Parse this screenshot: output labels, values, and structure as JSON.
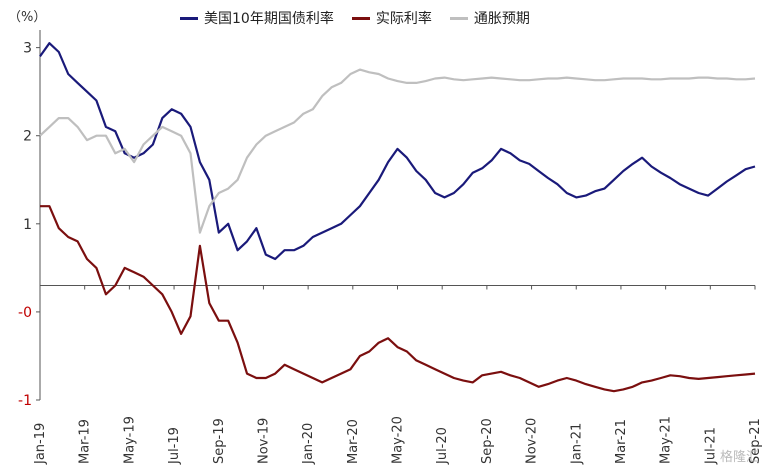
{
  "chart_data": {
    "type": "line",
    "unit_label": "（%）",
    "yticks": [
      "3",
      "2",
      "1",
      "-0",
      "-1"
    ],
    "ytick_values": [
      3,
      2,
      1,
      0,
      -1
    ],
    "ylim": [
      -1,
      3.2
    ],
    "xticks": [
      "Jan-19",
      "Mar-19",
      "May-19",
      "Jul-19",
      "Sep-19",
      "Nov-19",
      "Jan-20",
      "Mar-20",
      "May-20",
      "Jul-20",
      "Sep-20",
      "Nov-20",
      "Jan-21",
      "Mar-21",
      "May-21",
      "Jul-21",
      "Sep-21"
    ],
    "colors": {
      "nominal": "#1a1a7a",
      "real": "#7b0f0f",
      "breakeven": "#bfbfbf",
      "axis": "#555555",
      "neg_tick": "#c00000"
    },
    "series": [
      {
        "name": "美国10年期国债利率",
        "key": "nominal",
        "values": [
          2.9,
          3.05,
          2.95,
          2.7,
          2.6,
          2.5,
          2.4,
          2.1,
          2.05,
          1.8,
          1.75,
          1.8,
          1.9,
          2.2,
          2.3,
          2.25,
          2.1,
          1.7,
          1.5,
          0.9,
          1.0,
          0.7,
          0.8,
          0.95,
          0.65,
          0.6,
          0.7,
          0.7,
          0.75,
          0.85,
          0.9,
          0.95,
          1.0,
          1.1,
          1.2,
          1.35,
          1.5,
          1.7,
          1.85,
          1.75,
          1.6,
          1.5,
          1.35,
          1.3,
          1.35,
          1.45,
          1.58,
          1.63,
          1.72,
          1.85,
          1.8,
          1.72,
          1.68,
          1.6,
          1.52,
          1.45,
          1.35,
          1.3,
          1.32,
          1.37,
          1.4,
          1.5,
          1.6,
          1.68,
          1.75,
          1.65,
          1.58,
          1.52,
          1.45,
          1.4,
          1.35,
          1.32,
          1.4,
          1.48,
          1.55,
          1.62,
          1.65
        ]
      },
      {
        "name": "实际利率",
        "key": "real",
        "values": [
          1.2,
          1.2,
          0.95,
          0.85,
          0.8,
          0.6,
          0.5,
          0.2,
          0.3,
          0.5,
          0.45,
          0.4,
          0.3,
          0.2,
          0.0,
          -0.25,
          -0.05,
          0.75,
          0.1,
          -0.1,
          -0.1,
          -0.35,
          -0.7,
          -0.75,
          -0.75,
          -0.7,
          -0.6,
          -0.65,
          -0.7,
          -0.75,
          -0.8,
          -0.75,
          -0.7,
          -0.65,
          -0.5,
          -0.45,
          -0.35,
          -0.3,
          -0.4,
          -0.45,
          -0.55,
          -0.6,
          -0.65,
          -0.7,
          -0.75,
          -0.78,
          -0.8,
          -0.72,
          -0.7,
          -0.68,
          -0.72,
          -0.75,
          -0.8,
          -0.85,
          -0.82,
          -0.78,
          -0.75,
          -0.78,
          -0.82,
          -0.85,
          -0.88,
          -0.9,
          -0.88,
          -0.85,
          -0.8,
          -0.78,
          -0.75,
          -0.72,
          -0.73,
          -0.75,
          -0.76,
          -0.75,
          -0.74,
          -0.73,
          -0.72,
          -0.71,
          -0.7
        ]
      },
      {
        "name": "通胀预期",
        "key": "breakeven",
        "values": [
          2.0,
          2.1,
          2.2,
          2.2,
          2.1,
          1.95,
          2.0,
          2.0,
          1.8,
          1.85,
          1.7,
          1.9,
          2.0,
          2.1,
          2.05,
          2.0,
          1.8,
          0.9,
          1.2,
          1.35,
          1.4,
          1.5,
          1.75,
          1.9,
          2.0,
          2.05,
          2.1,
          2.15,
          2.25,
          2.3,
          2.45,
          2.55,
          2.6,
          2.7,
          2.75,
          2.72,
          2.7,
          2.65,
          2.62,
          2.6,
          2.6,
          2.62,
          2.65,
          2.66,
          2.64,
          2.63,
          2.64,
          2.65,
          2.66,
          2.65,
          2.64,
          2.63,
          2.63,
          2.64,
          2.65,
          2.65,
          2.66,
          2.65,
          2.64,
          2.63,
          2.63,
          2.64,
          2.65,
          2.65,
          2.65,
          2.64,
          2.64,
          2.65,
          2.65,
          2.65,
          2.66,
          2.66,
          2.65,
          2.65,
          2.64,
          2.64,
          2.65
        ]
      }
    ],
    "legend_position": "top",
    "grid": false,
    "watermark": "格隆汇"
  }
}
